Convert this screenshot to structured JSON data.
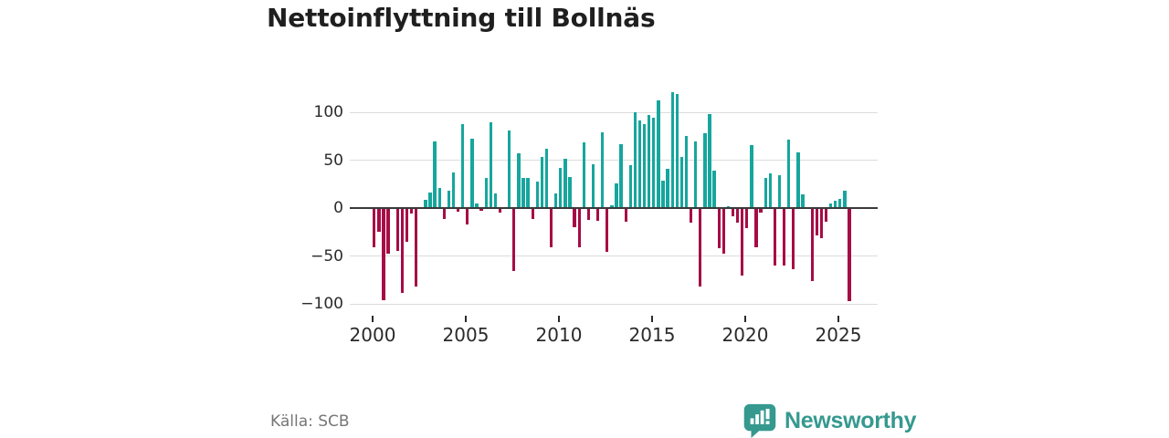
{
  "title": "Nettoinflyttning till Bollnäs",
  "source": "Källa: SCB",
  "branding": {
    "logo_text": "Newsworthy",
    "logo_icon": "newsworthy-speech-bubble-bar-chart-icon",
    "brand_color": "#35998f"
  },
  "chart_data": {
    "type": "bar",
    "title": "Nettoinflyttning till Bollnäs",
    "x_start_year": 2000,
    "points_per_year": 4,
    "values": [
      -41,
      -25,
      -96,
      -48,
      0,
      -45,
      -89,
      -35,
      -6,
      -82,
      0,
      9,
      16,
      70,
      21,
      -11,
      18,
      37,
      -4,
      88,
      -17,
      72,
      5,
      -3,
      31,
      90,
      15,
      -5,
      0,
      81,
      -66,
      57,
      31,
      31,
      -11,
      28,
      53,
      62,
      -41,
      15,
      42,
      51,
      32,
      -20,
      -41,
      69,
      -12,
      46,
      -13,
      79,
      -46,
      3,
      26,
      67,
      -14,
      45,
      100,
      91,
      88,
      97,
      94,
      112,
      29,
      41,
      121,
      119,
      53,
      75,
      -15,
      70,
      -82,
      78,
      98,
      39,
      -42,
      -48,
      2,
      -9,
      -15,
      -70,
      -21,
      66,
      -41,
      -5,
      31,
      36,
      -60,
      34,
      -60,
      71,
      -64,
      58,
      14,
      0,
      -76,
      -29,
      -31,
      -14,
      5,
      8,
      10,
      18,
      -97
    ],
    "positive_color": "#16a69d",
    "negative_color": "#a60c45",
    "y_ticks": [
      100,
      50,
      0,
      -50,
      -100
    ],
    "y_tick_labels": [
      "100",
      "50",
      "0",
      "−50",
      "−100"
    ],
    "x_tick_years": [
      2000,
      2005,
      2010,
      2015,
      2020,
      2025
    ],
    "ylim": [
      -105,
      125
    ],
    "grid": true,
    "legend": "none",
    "xlabel": "",
    "ylabel": ""
  }
}
